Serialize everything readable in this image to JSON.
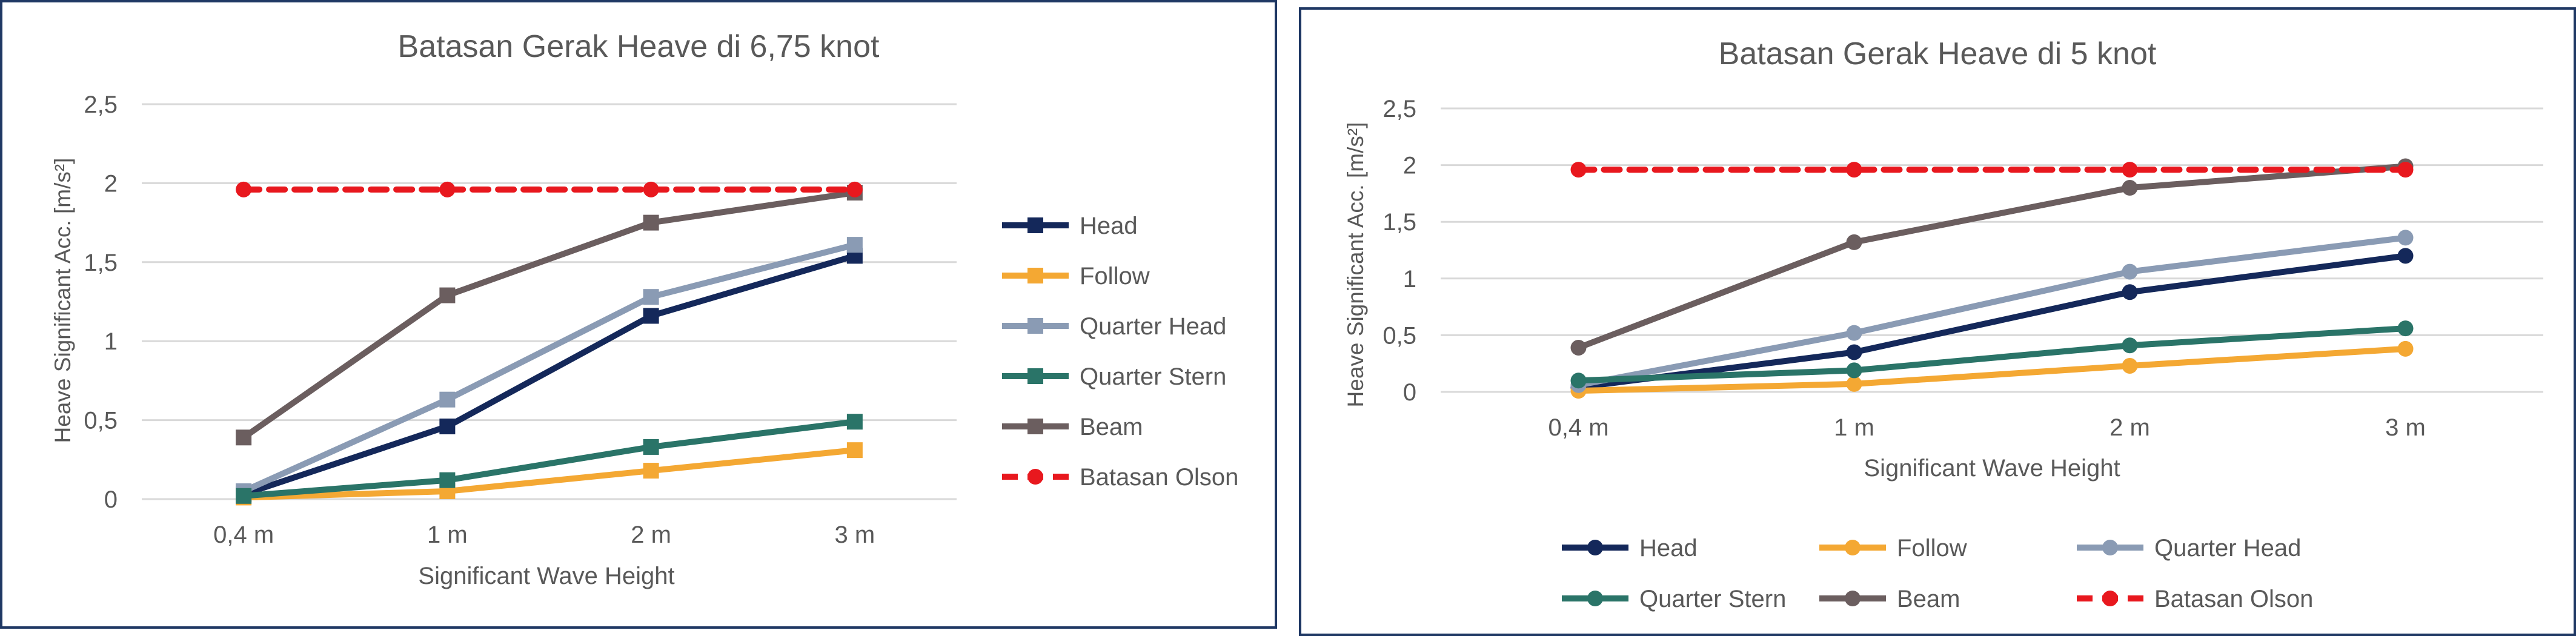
{
  "chart_data": [
    {
      "type": "line",
      "title": "Batasan Gerak Heave di 6,75 knot",
      "xlabel": "Significant Wave Height",
      "ylabel": "Heave Significant Acc. [m/s²]",
      "categories": [
        "0,4 m",
        "1 m",
        "2 m",
        "3 m"
      ],
      "ylim": [
        0,
        2.5
      ],
      "yticks": [
        "0",
        "0,5",
        "1",
        "1,5",
        "2",
        "2,5"
      ],
      "grid": true,
      "legend_position": "right",
      "marker": "square",
      "series": [
        {
          "name": "Head",
          "color": "#14285a",
          "values": [
            0.03,
            0.46,
            1.16,
            1.54
          ]
        },
        {
          "name": "Follow",
          "color": "#f4a833",
          "values": [
            0.01,
            0.05,
            0.18,
            0.31
          ]
        },
        {
          "name": "Quarter Head",
          "color": "#8a9bb4",
          "values": [
            0.05,
            0.63,
            1.28,
            1.61
          ]
        },
        {
          "name": "Quarter Stern",
          "color": "#2a7468",
          "values": [
            0.02,
            0.12,
            0.33,
            0.49
          ]
        },
        {
          "name": "Beam",
          "color": "#6b5e5f",
          "values": [
            0.39,
            1.29,
            1.75,
            1.94
          ]
        },
        {
          "name": "Batasan Olson",
          "color": "#e8181e",
          "dashed": true,
          "values": [
            1.96,
            1.96,
            1.96,
            1.96
          ]
        }
      ]
    },
    {
      "type": "line",
      "title": "Batasan Gerak Heave di 5 knot",
      "xlabel": "Significant Wave Height",
      "ylabel": "Heave Significant Acc. [m/s²]",
      "categories": [
        "0,4 m",
        "1 m",
        "2 m",
        "3 m"
      ],
      "ylim": [
        0,
        2.5
      ],
      "yticks": [
        "0",
        "0,5",
        "1",
        "1,5",
        "2",
        "2,5"
      ],
      "grid": true,
      "legend_position": "bottom",
      "marker": "circle",
      "series": [
        {
          "name": "Head",
          "color": "#14285a",
          "values": [
            0.04,
            0.35,
            0.88,
            1.2
          ]
        },
        {
          "name": "Follow",
          "color": "#f4a833",
          "values": [
            0.01,
            0.07,
            0.23,
            0.38
          ]
        },
        {
          "name": "Quarter Head",
          "color": "#8a9bb4",
          "values": [
            0.06,
            0.52,
            1.06,
            1.36
          ]
        },
        {
          "name": "Quarter Stern",
          "color": "#2a7468",
          "values": [
            0.1,
            0.19,
            0.41,
            0.56
          ]
        },
        {
          "name": "Beam",
          "color": "#6b5e5f",
          "values": [
            0.39,
            1.32,
            1.8,
            1.99
          ]
        },
        {
          "name": "Batasan Olson",
          "color": "#e8181e",
          "dashed": true,
          "values": [
            1.96,
            1.96,
            1.96,
            1.96
          ]
        }
      ]
    }
  ]
}
